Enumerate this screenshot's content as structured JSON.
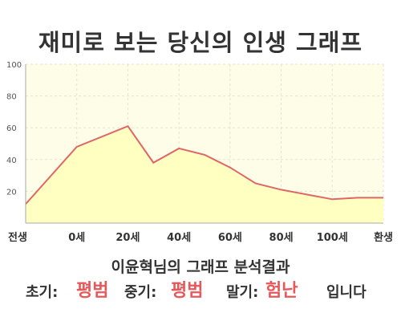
{
  "title": "재미로 보는 당신의 인생 그래프",
  "subtitle": "이윤혁님의 그래프 분석결과",
  "result": {
    "early_label": "초기:",
    "early_value": "평범",
    "middle_label": "중기:",
    "middle_value": "평범",
    "late_label": "말기:",
    "late_value": "험난",
    "ending": "입니다"
  },
  "colors": {
    "fill": "#ffffc2",
    "plot_bg": "#fdfde8",
    "line": "#e06666",
    "highlight": "#e8585a",
    "text": "#333333"
  },
  "chart_data": {
    "type": "area",
    "x_tick_labels": [
      "전생",
      "0세",
      "20세",
      "40세",
      "60세",
      "80세",
      "100세",
      "환생"
    ],
    "x_tick_positions": [
      -20,
      0,
      20,
      40,
      60,
      80,
      100,
      120
    ],
    "x_range": [
      -20,
      120
    ],
    "y_range": [
      0,
      100
    ],
    "y_ticks": [
      20,
      40,
      60,
      80,
      100
    ],
    "grid": true,
    "series": [
      {
        "x": [
          -20,
          0,
          20,
          30,
          40,
          50,
          60,
          70,
          80,
          90,
          100,
          110,
          120
        ],
        "y": [
          12,
          48,
          61,
          38,
          47,
          43,
          35,
          25,
          21,
          18,
          15,
          16,
          16
        ]
      }
    ]
  }
}
